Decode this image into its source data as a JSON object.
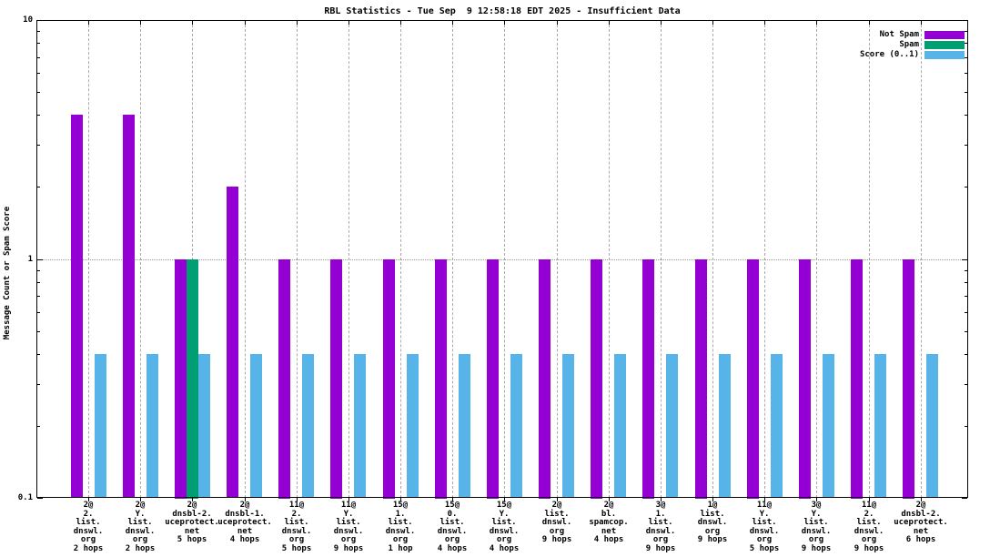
{
  "chart_data": {
    "type": "bar",
    "title": "RBL Statistics - Tue Sep  9 12:58:18 EDT 2025 - Insufficient Data",
    "ylabel": "Message Count or Spam Score",
    "yscale": "log",
    "ylim": [
      0.1,
      10
    ],
    "yticks": [
      10,
      1,
      0.1
    ],
    "ytick_labels": [
      "10",
      "1",
      "0.1"
    ],
    "grid": "vertical dashed at each category, horizontal dotted at y=1",
    "legend_position": "top-right-inside",
    "background_color": "#ffffff",
    "categories": [
      [
        "2@",
        "2.",
        "list.",
        "dnswl.",
        "org",
        "2 hops"
      ],
      [
        "2@",
        "Y.",
        "list.",
        "dnswl.",
        "org",
        "2 hops"
      ],
      [
        "2@",
        "dnsbl-2.",
        "uceprotect.",
        "net",
        "5 hops"
      ],
      [
        "2@",
        "dnsbl-1.",
        "uceprotect.",
        "net",
        "4 hops"
      ],
      [
        "11@",
        "2.",
        "list.",
        "dnswl.",
        "org",
        "5 hops"
      ],
      [
        "11@",
        "Y.",
        "list.",
        "dnswl.",
        "org",
        "9 hops"
      ],
      [
        "15@",
        "1.",
        "list.",
        "dnswl.",
        "org",
        "1 hop"
      ],
      [
        "15@",
        "0.",
        "list.",
        "dnswl.",
        "org",
        "4 hops"
      ],
      [
        "15@",
        "Y.",
        "list.",
        "dnswl.",
        "org",
        "4 hops"
      ],
      [
        "2@",
        "list.",
        "dnswl.",
        "org",
        "9 hops"
      ],
      [
        "2@",
        "bl.",
        "spamcop.",
        "net",
        "4 hops"
      ],
      [
        "3@",
        "1.",
        "list.",
        "dnswl.",
        "org",
        "9 hops"
      ],
      [
        "1@",
        "list.",
        "dnswl.",
        "org",
        "9 hops"
      ],
      [
        "11@",
        "Y.",
        "list.",
        "dnswl.",
        "org",
        "5 hops"
      ],
      [
        "3@",
        "Y.",
        "list.",
        "dnswl.",
        "org",
        "9 hops"
      ],
      [
        "11@",
        "2.",
        "list.",
        "dnswl.",
        "org",
        "9 hops"
      ],
      [
        "2@",
        "dnsbl-2.",
        "uceprotect.",
        "net",
        "6 hops"
      ]
    ],
    "series": [
      {
        "name": "Not Spam",
        "color": "#9400d3",
        "values": [
          4,
          4,
          1,
          2,
          1,
          1,
          1,
          1,
          1,
          1,
          1,
          1,
          1,
          1,
          1,
          1,
          1
        ]
      },
      {
        "name": "Spam",
        "color": "#009e73",
        "values": [
          0,
          0,
          1,
          0,
          0,
          0,
          0,
          0,
          0,
          0,
          0,
          0,
          0,
          0,
          0,
          0,
          0
        ]
      },
      {
        "name": "Score (0..1)",
        "color": "#56b4e9",
        "values": [
          0.4,
          0.4,
          0.4,
          0.4,
          0.4,
          0.4,
          0.4,
          0.4,
          0.4,
          0.4,
          0.4,
          0.4,
          0.4,
          0.4,
          0.4,
          0.4,
          0.4
        ]
      }
    ]
  }
}
